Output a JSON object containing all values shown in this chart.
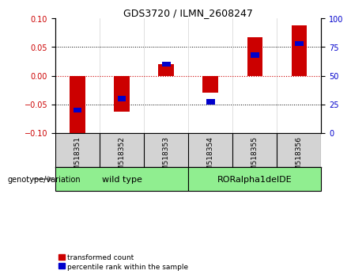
{
  "title": "GDS3720 / ILMN_2608247",
  "samples": [
    "GSM518351",
    "GSM518352",
    "GSM518353",
    "GSM518354",
    "GSM518355",
    "GSM518356"
  ],
  "red_values": [
    -0.102,
    -0.063,
    0.02,
    -0.03,
    0.067,
    0.088
  ],
  "blue_values_right": [
    20,
    30,
    60,
    27,
    68,
    78
  ],
  "ylim_left": [
    -0.1,
    0.1
  ],
  "ylim_right": [
    0,
    100
  ],
  "yticks_left": [
    -0.1,
    -0.05,
    0,
    0.05,
    0.1
  ],
  "yticks_right": [
    0,
    25,
    50,
    75,
    100
  ],
  "group_labels": [
    "wild type",
    "RORalpha1delDE"
  ],
  "group_colors": [
    "#90EE90",
    "#90EE90"
  ],
  "genotype_label": "genotype/variation",
  "legend_red": "transformed count",
  "legend_blue": "percentile rank within the sample",
  "bar_color_red": "#CC0000",
  "bar_color_blue": "#0000CC",
  "zero_line_color": "#CC0000",
  "background_color": "#ffffff",
  "sample_bg_color": "#d3d3d3",
  "bar_width": 0.35
}
